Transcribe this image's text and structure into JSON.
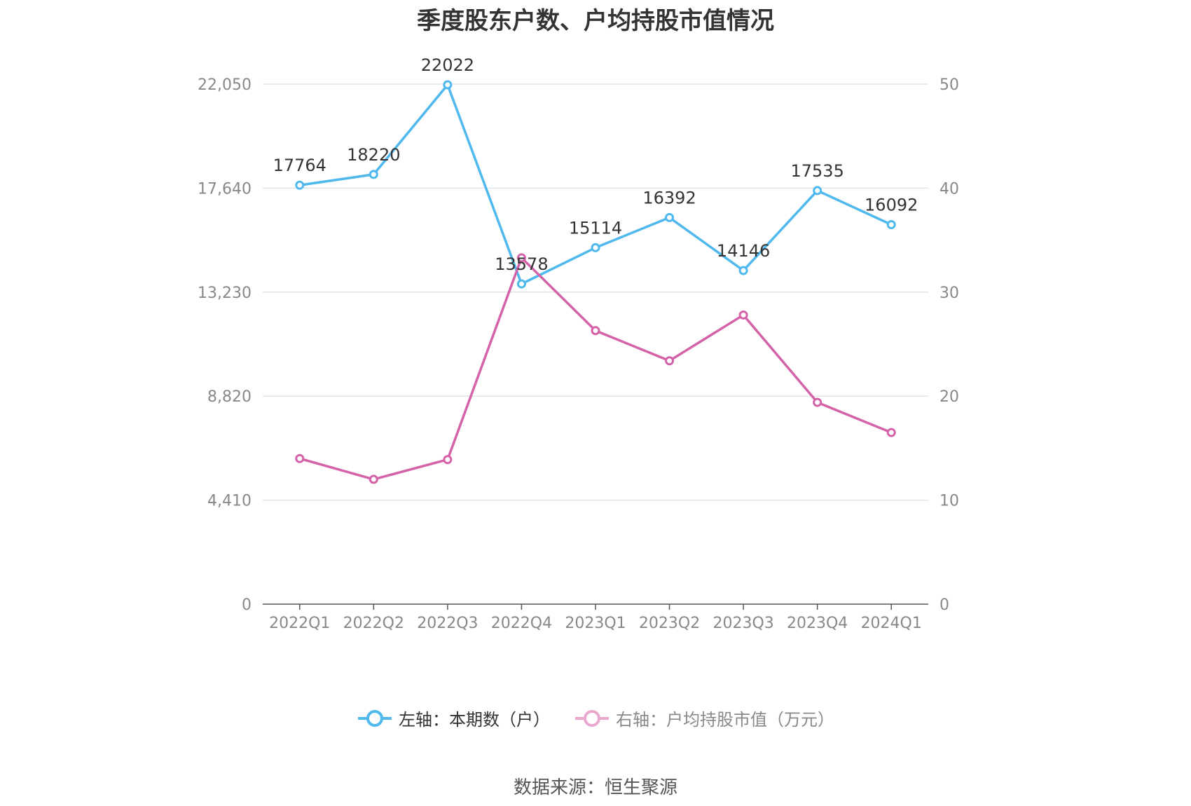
{
  "chart_data": {
    "type": "line",
    "title": "季度股东户数、户均持股市值情况",
    "categories": [
      "2022Q1",
      "2022Q2",
      "2022Q3",
      "2022Q4",
      "2023Q1",
      "2023Q2",
      "2023Q3",
      "2023Q4",
      "2024Q1"
    ],
    "left_axis": {
      "ylim": [
        0,
        22050
      ],
      "ticks": [
        "0",
        "4,410",
        "8,820",
        "13,230",
        "17,640",
        "22,050"
      ]
    },
    "right_axis": {
      "ylim": [
        0,
        50
      ],
      "ticks": [
        "0",
        "10",
        "20",
        "30",
        "40",
        "50"
      ]
    },
    "series": [
      {
        "name": "左轴：本期数（户）",
        "axis": "left",
        "color": "#4fb8ec",
        "values": [
          17764,
          18220,
          22022,
          13578,
          15114,
          16392,
          14146,
          17535,
          16092
        ],
        "labels": [
          "17764",
          "18220",
          "22022",
          "13578",
          "15114",
          "16392",
          "14146",
          "17535",
          "16092"
        ]
      },
      {
        "name": "右轴：户均持股市值（万元）",
        "axis": "right",
        "color": "#d462a8",
        "values": [
          14.0,
          12.0,
          13.9,
          33.3,
          26.3,
          23.4,
          27.8,
          19.4,
          16.5
        ]
      }
    ],
    "legend_position": "bottom",
    "grid": true
  },
  "source": "数据来源：恒生聚源"
}
